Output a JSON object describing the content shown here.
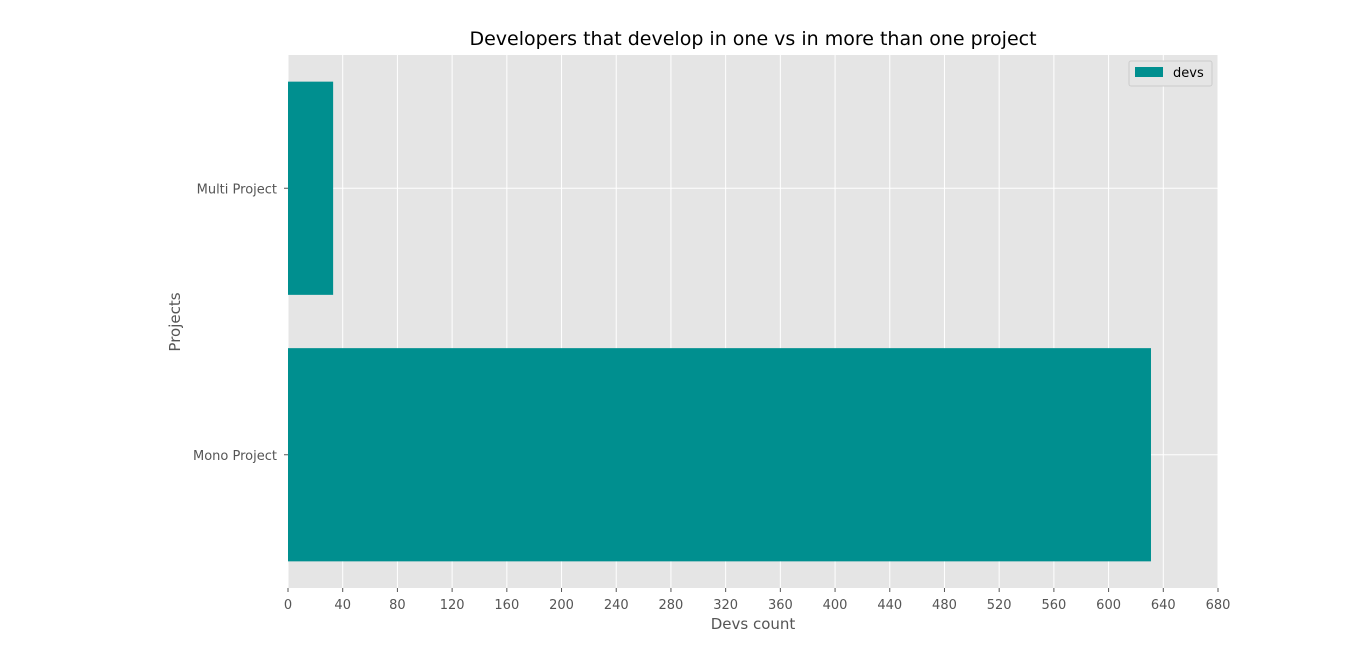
{
  "chart_data": {
    "type": "bar",
    "orientation": "horizontal",
    "title": "Developers that develop in one vs in more than one project",
    "xlabel": "Devs count",
    "ylabel": "Projects",
    "categories": [
      "Mono Project",
      "Multi Project"
    ],
    "series": [
      {
        "name": "devs",
        "values": [
          631,
          33
        ],
        "color": "#008f8f"
      }
    ],
    "xlim": [
      0,
      680
    ],
    "xticks": [
      0,
      40,
      80,
      120,
      160,
      200,
      240,
      280,
      320,
      360,
      400,
      440,
      480,
      520,
      560,
      600,
      640,
      680
    ],
    "grid": true,
    "legend": "top-right",
    "background": "#e5e5e5",
    "gridcolor": "#ffffff"
  }
}
